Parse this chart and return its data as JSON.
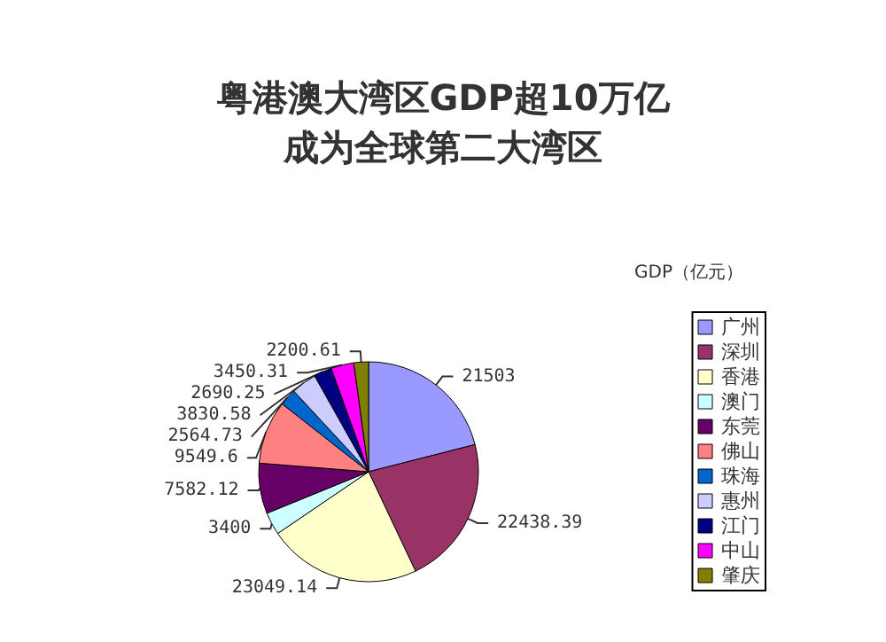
{
  "chart_data": {
    "type": "pie",
    "title": "粤港澳大湾区GDP超10万亿",
    "subtitle": "成为全球第二大湾区",
    "legend_title": "GDP（亿元）",
    "categories": [
      "广州",
      "深圳",
      "香港",
      "澳门",
      "东莞",
      "佛山",
      "珠海",
      "惠州",
      "江门",
      "中山",
      "肇庆"
    ],
    "values": [
      21503,
      22438.39,
      23049.14,
      3400,
      7582.12,
      9549.6,
      2564.73,
      3830.58,
      2690.25,
      3450.31,
      2200.61
    ],
    "colors": [
      "#9999ff",
      "#993366",
      "#ffffcc",
      "#ccffff",
      "#660066",
      "#ff8080",
      "#0066cc",
      "#ccccff",
      "#000080",
      "#ff00ff",
      "#808000"
    ],
    "data_labels": true,
    "legend": "right"
  }
}
